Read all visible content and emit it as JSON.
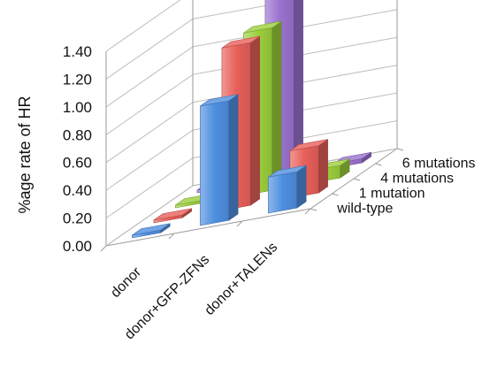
{
  "chart_data": {
    "type": "bar",
    "subtype": "3d-column",
    "ylabel": "%age rate of HR",
    "yticks": [
      "0.00",
      "0.20",
      "0.40",
      "0.60",
      "0.80",
      "1.00",
      "1.20",
      "1.40"
    ],
    "ylim": [
      0,
      1.4
    ],
    "grid": true,
    "categories": [
      "donor",
      "donor+GFP-ZFNs",
      "donor+TALENs"
    ],
    "series": [
      {
        "name": "wild-type",
        "color": "#4f8fe0",
        "values": [
          0.02,
          0.86,
          0.26
        ]
      },
      {
        "name": "1 mutation",
        "color": "#e8605a",
        "values": [
          0.02,
          1.17,
          0.34
        ]
      },
      {
        "name": "4 mutations",
        "color": "#9bcf3c",
        "values": [
          0.02,
          1.17,
          0.09
        ]
      },
      {
        "name": "6 mutations",
        "color": "#9b72cf",
        "values": [
          0.02,
          1.39,
          0.03
        ]
      }
    ]
  }
}
